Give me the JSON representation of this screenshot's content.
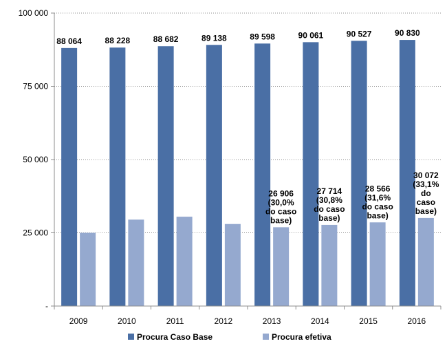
{
  "chart_data": {
    "type": "bar",
    "title": "",
    "xlabel": "",
    "ylabel": "",
    "categories": [
      "2009",
      "2010",
      "2011",
      "2012",
      "2013",
      "2014",
      "2015",
      "2016"
    ],
    "ylim": [
      0,
      100000
    ],
    "y_ticks": [
      {
        "value": 100000,
        "label": "100 000"
      },
      {
        "value": 75000,
        "label": "75 000"
      },
      {
        "value": 50000,
        "label": "50 000"
      },
      {
        "value": 25000,
        "label": "25 000"
      },
      {
        "value": 0,
        "label": "-"
      }
    ],
    "grid": true,
    "legend_position": "bottom",
    "series": [
      {
        "name": "Procura Caso Base",
        "color": "#4a6fa5",
        "values": [
          88064,
          88228,
          88682,
          89138,
          89598,
          90061,
          90527,
          90830
        ],
        "labels": [
          [
            "88 064"
          ],
          [
            "88 228"
          ],
          [
            "88 682"
          ],
          [
            "89 138"
          ],
          [
            "89 598"
          ],
          [
            "90 061"
          ],
          [
            "90 527"
          ],
          [
            "90 830"
          ]
        ]
      },
      {
        "name": "Procura efetiva",
        "color": "#95a9cf",
        "values": [
          25000,
          29500,
          30500,
          28000,
          26906,
          27714,
          28566,
          30072
        ],
        "labels": [
          [],
          [],
          [],
          [],
          [
            "26 906",
            "(30,0%",
            "do caso",
            "base)"
          ],
          [
            "27 714",
            "(30,8%",
            "do caso",
            "base)"
          ],
          [
            "28 566",
            "(31,6%",
            "do caso",
            "base)"
          ],
          [
            "30 072",
            "(33,1%",
            "do",
            "caso",
            "base)"
          ]
        ]
      }
    ]
  }
}
